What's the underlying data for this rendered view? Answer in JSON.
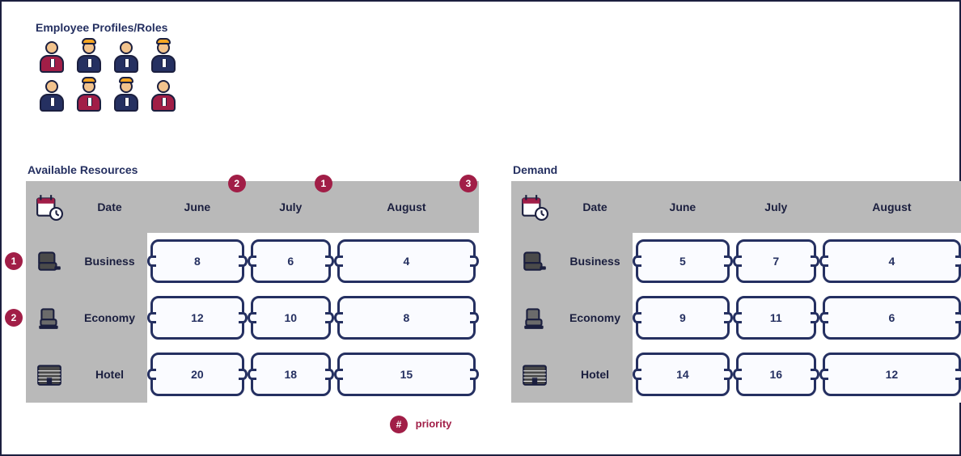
{
  "colors": {
    "border": "#1b1f3f",
    "navy": "#253061",
    "maroon": "#a11e47",
    "grey": "#b9b9b9",
    "skin": "#f2c38d",
    "hat": "#f5a623",
    "slot_border": "#253061",
    "slot_bg": "#fafbff"
  },
  "people": {
    "title": "Employee Profiles/Roles",
    "grid": [
      [
        "maroon",
        "navy-hat",
        "navy",
        "navy-hat"
      ],
      [
        "navy",
        "maroon-hat",
        "navy-hat",
        "maroon"
      ]
    ]
  },
  "months": [
    "June",
    "July",
    "August"
  ],
  "row_defs": [
    {
      "key": "date",
      "label": "Date",
      "icon": "calendar"
    },
    {
      "key": "business",
      "label": "Business",
      "icon": "seat-biz"
    },
    {
      "key": "economy",
      "label": "Economy",
      "icon": "seat-eco"
    },
    {
      "key": "hotel",
      "label": "Hotel",
      "icon": "hotel"
    }
  ],
  "panels": {
    "left": {
      "title": "Available Resources",
      "col_priorities": {
        "June": 2,
        "July": 1,
        "August": 3
      },
      "row_priorities": {
        "business": 1,
        "economy": 2
      },
      "cells": {
        "business": {
          "June": "8",
          "July": "6",
          "August": "4"
        },
        "economy": {
          "June": "12",
          "July": "10",
          "August": "8"
        },
        "hotel": {
          "June": "20",
          "July": "18",
          "August": "15"
        }
      }
    },
    "right": {
      "title": "Demand",
      "col_priorities": {},
      "row_priorities": {},
      "cells": {
        "business": {
          "June": "5",
          "July": "7",
          "August": "4"
        },
        "economy": {
          "June": "9",
          "July": "11",
          "August": "6"
        },
        "hotel": {
          "June": "14",
          "July": "16",
          "August": "12"
        }
      }
    }
  },
  "legend": {
    "badge": "#",
    "label": "priority"
  }
}
